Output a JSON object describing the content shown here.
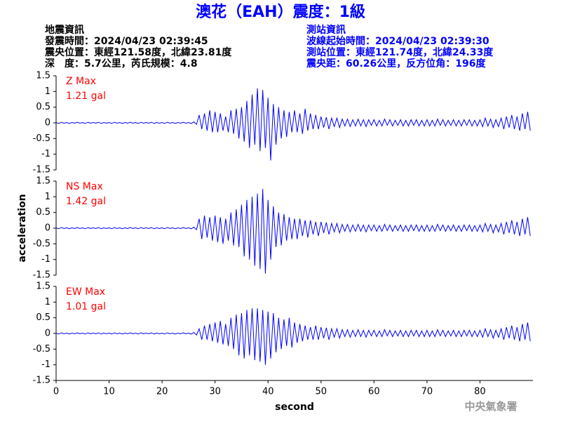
{
  "header": {
    "title": "澳花（EAH）震度：1級",
    "left": [
      "地震資訊",
      "發震時間：2024/04/23 02:39:45",
      "震央位置：東經121.58度，北緯23.81度",
      "深　度：5.7公里，芮氏規模：4.8"
    ],
    "right": [
      "測站資訊",
      "波線起始時間：2024/04/23 02:39:30",
      "測站位置：東經121.74度，北緯24.33度",
      "震央距：60.26公里，反方位角：196度"
    ]
  },
  "footer": "中央氣象署",
  "chart_data": [
    {
      "type": "line",
      "annotations": [
        "Z Max",
        "1.21 gal"
      ],
      "annotation_color": "#ff0000",
      "xlim": [
        0,
        90
      ],
      "ylim": [
        -1.5,
        1.5
      ],
      "yticks": [
        -1.5,
        -1,
        -0.5,
        0,
        0.5,
        1,
        1.5
      ],
      "x": [
        0,
        0.5,
        1,
        1.5,
        2,
        2.5,
        3,
        3.5,
        4,
        4.5,
        5,
        5.5,
        6,
        6.5,
        7,
        7.5,
        8,
        8.5,
        9,
        9.5,
        10,
        10.5,
        11,
        11.5,
        12,
        12.5,
        13,
        13.5,
        14,
        14.5,
        15,
        15.5,
        16,
        16.5,
        17,
        17.5,
        18,
        18.5,
        19,
        19.5,
        20,
        20.5,
        21,
        21.5,
        22,
        22.5,
        23,
        23.5,
        24,
        24.5,
        25,
        25.5,
        26,
        26.5,
        27,
        27.5,
        28,
        28.5,
        29,
        29.5,
        30,
        30.5,
        31,
        31.5,
        32,
        32.5,
        33,
        33.5,
        34,
        34.5,
        35,
        35.5,
        36,
        36.5,
        37,
        37.5,
        38,
        38.5,
        39,
        39.5,
        40,
        40.5,
        41,
        41.5,
        42,
        42.5,
        43,
        43.5,
        44,
        44.5,
        45,
        45.5,
        46,
        46.5,
        47,
        47.5,
        48,
        48.5,
        49,
        49.5,
        50,
        50.5,
        51,
        51.5,
        52,
        52.5,
        53,
        53.5,
        54,
        54.5,
        55,
        55.5,
        56,
        56.5,
        57,
        57.5,
        58,
        58.5,
        59,
        59.5,
        60,
        60.5,
        61,
        61.5,
        62,
        62.5,
        63,
        63.5,
        64,
        64.5,
        65,
        65.5,
        66,
        66.5,
        67,
        67.5,
        68,
        68.5,
        69,
        69.5,
        70,
        70.5,
        71,
        71.5,
        72,
        72.5,
        73,
        73.5,
        74,
        74.5,
        75,
        75.5,
        76,
        76.5,
        77,
        77.5,
        78,
        78.5,
        79,
        79.5,
        80,
        80.5,
        81,
        81.5,
        82,
        82.5,
        83,
        83.5,
        84,
        84.5,
        85,
        85.5,
        86,
        86.5,
        87,
        87.5,
        88,
        88.5,
        89,
        89.5
      ],
      "series": [
        {
          "color": "#0000ff",
          "values": [
            0.01,
            -0.02,
            0.02,
            -0.01,
            0.01,
            -0.02,
            0.01,
            -0.01,
            0.02,
            -0.01,
            0.01,
            -0.02,
            0.02,
            -0.01,
            0.01,
            -0.01,
            0.02,
            -0.02,
            0.01,
            -0.01,
            0.01,
            -0.02,
            0.02,
            -0.01,
            0.01,
            -0.02,
            0.01,
            -0.01,
            0.02,
            -0.01,
            0.01,
            -0.02,
            0.02,
            -0.01,
            0.01,
            -0.01,
            0.02,
            -0.02,
            0.01,
            -0.01,
            0.01,
            -0.02,
            0.02,
            -0.01,
            0.01,
            -0.02,
            0.01,
            -0.01,
            0.02,
            -0.01,
            0.01,
            -0.02,
            0.03,
            -0.05,
            0.25,
            -0.2,
            0.3,
            -0.25,
            0.4,
            -0.3,
            0.35,
            -0.3,
            0.3,
            -0.25,
            0.2,
            -0.3,
            0.4,
            -0.35,
            0.45,
            -0.5,
            0.5,
            -0.6,
            0.7,
            -0.8,
            0.9,
            -0.7,
            1.1,
            -0.9,
            1.05,
            -0.8,
            0.8,
            -1.2,
            0.6,
            -0.7,
            0.5,
            -0.5,
            0.4,
            -0.45,
            0.35,
            -0.3,
            0.4,
            -0.3,
            0.3,
            -0.35,
            0.45,
            -0.25,
            0.3,
            -0.2,
            0.25,
            -0.2,
            0.2,
            -0.15,
            0.18,
            -0.2,
            0.15,
            -0.12,
            0.15,
            -0.15,
            0.12,
            -0.1,
            0.12,
            -0.12,
            0.1,
            -0.1,
            0.12,
            -0.1,
            0.1,
            -0.12,
            0.1,
            -0.08,
            0.1,
            -0.1,
            0.08,
            -0.1,
            0.12,
            -0.08,
            0.1,
            -0.1,
            0.08,
            -0.08,
            0.1,
            -0.1,
            0.08,
            -0.1,
            0.1,
            -0.08,
            0.1,
            -0.1,
            0.08,
            -0.1,
            0.1,
            -0.1,
            0.08,
            -0.1,
            0.12,
            -0.08,
            0.1,
            -0.1,
            0.08,
            -0.08,
            0.1,
            -0.1,
            0.08,
            -0.1,
            0.1,
            -0.08,
            0.1,
            -0.1,
            0.08,
            -0.1,
            0.1,
            -0.12,
            0.15,
            -0.1,
            0.12,
            -0.15,
            0.1,
            -0.12,
            0.15,
            -0.2,
            0.2,
            -0.15,
            0.25,
            -0.2,
            0.2,
            -0.25,
            0.3,
            -0.2,
            0.35,
            -0.25
          ]
        }
      ]
    },
    {
      "type": "line",
      "annotations": [
        "NS Max",
        "1.42 gal"
      ],
      "annotation_color": "#ff0000",
      "ylabel": "acceleration",
      "xlim": [
        0,
        90
      ],
      "ylim": [
        -1.5,
        1.5
      ],
      "yticks": [
        -1.5,
        -1,
        -0.5,
        0,
        0.5,
        1,
        1.5
      ],
      "x": [
        0,
        0.5,
        1,
        1.5,
        2,
        2.5,
        3,
        3.5,
        4,
        4.5,
        5,
        5.5,
        6,
        6.5,
        7,
        7.5,
        8,
        8.5,
        9,
        9.5,
        10,
        10.5,
        11,
        11.5,
        12,
        12.5,
        13,
        13.5,
        14,
        14.5,
        15,
        15.5,
        16,
        16.5,
        17,
        17.5,
        18,
        18.5,
        19,
        19.5,
        20,
        20.5,
        21,
        21.5,
        22,
        22.5,
        23,
        23.5,
        24,
        24.5,
        25,
        25.5,
        26,
        26.5,
        27,
        27.5,
        28,
        28.5,
        29,
        29.5,
        30,
        30.5,
        31,
        31.5,
        32,
        32.5,
        33,
        33.5,
        34,
        34.5,
        35,
        35.5,
        36,
        36.5,
        37,
        37.5,
        38,
        38.5,
        39,
        39.5,
        40,
        40.5,
        41,
        41.5,
        42,
        42.5,
        43,
        43.5,
        44,
        44.5,
        45,
        45.5,
        46,
        46.5,
        47,
        47.5,
        48,
        48.5,
        49,
        49.5,
        50,
        50.5,
        51,
        51.5,
        52,
        52.5,
        53,
        53.5,
        54,
        54.5,
        55,
        55.5,
        56,
        56.5,
        57,
        57.5,
        58,
        58.5,
        59,
        59.5,
        60,
        60.5,
        61,
        61.5,
        62,
        62.5,
        63,
        63.5,
        64,
        64.5,
        65,
        65.5,
        66,
        66.5,
        67,
        67.5,
        68,
        68.5,
        69,
        69.5,
        70,
        70.5,
        71,
        71.5,
        72,
        72.5,
        73,
        73.5,
        74,
        74.5,
        75,
        75.5,
        76,
        76.5,
        77,
        77.5,
        78,
        78.5,
        79,
        79.5,
        80,
        80.5,
        81,
        81.5,
        82,
        82.5,
        83,
        83.5,
        84,
        84.5,
        85,
        85.5,
        86,
        86.5,
        87,
        87.5,
        88,
        88.5,
        89,
        89.5
      ],
      "series": [
        {
          "color": "#0000ff",
          "values": [
            0.01,
            -0.02,
            0.02,
            -0.01,
            0.01,
            -0.02,
            0.01,
            -0.01,
            0.02,
            -0.01,
            0.01,
            -0.02,
            0.02,
            -0.01,
            0.01,
            -0.01,
            0.02,
            -0.02,
            0.01,
            -0.01,
            0.01,
            -0.02,
            0.02,
            -0.01,
            0.01,
            -0.02,
            0.01,
            -0.01,
            0.02,
            -0.01,
            0.01,
            -0.02,
            0.02,
            -0.01,
            0.01,
            -0.01,
            0.02,
            -0.02,
            0.01,
            -0.01,
            0.01,
            -0.02,
            0.02,
            -0.01,
            0.01,
            -0.02,
            0.01,
            -0.01,
            0.02,
            -0.01,
            0.01,
            -0.02,
            0.03,
            -0.05,
            0.3,
            -0.35,
            0.4,
            -0.3,
            0.35,
            -0.4,
            0.4,
            -0.45,
            0.35,
            -0.5,
            0.3,
            -0.4,
            0.5,
            -0.55,
            0.6,
            -0.6,
            0.75,
            -0.9,
            0.9,
            -1.0,
            1.0,
            -1.2,
            1.1,
            -1.3,
            1.25,
            -1.45,
            0.9,
            -1.0,
            0.7,
            -0.6,
            0.5,
            -0.55,
            0.45,
            -0.4,
            0.35,
            -0.35,
            0.3,
            -0.35,
            0.3,
            -0.25,
            0.25,
            -0.3,
            0.25,
            -0.2,
            0.2,
            -0.25,
            0.2,
            -0.15,
            0.18,
            -0.2,
            0.15,
            -0.12,
            0.15,
            -0.15,
            0.12,
            -0.1,
            0.12,
            -0.12,
            0.1,
            -0.1,
            0.12,
            -0.1,
            0.1,
            -0.12,
            0.1,
            -0.08,
            0.1,
            -0.1,
            0.08,
            -0.1,
            0.12,
            -0.08,
            0.1,
            -0.1,
            0.08,
            -0.08,
            0.1,
            -0.1,
            0.08,
            -0.1,
            0.1,
            -0.08,
            0.1,
            -0.1,
            0.08,
            -0.1,
            0.1,
            -0.1,
            0.08,
            -0.1,
            0.12,
            -0.08,
            0.1,
            -0.1,
            0.08,
            -0.08,
            0.1,
            -0.1,
            0.08,
            -0.1,
            0.1,
            -0.08,
            0.1,
            -0.1,
            0.08,
            -0.1,
            0.1,
            -0.12,
            0.15,
            -0.1,
            0.12,
            -0.15,
            0.1,
            -0.12,
            0.15,
            -0.2,
            0.2,
            -0.15,
            0.25,
            -0.2,
            0.2,
            -0.25,
            0.3,
            -0.2,
            0.35,
            -0.25
          ]
        }
      ]
    },
    {
      "type": "line",
      "annotations": [
        "EW Max",
        "1.01 gal"
      ],
      "annotation_color": "#ff0000",
      "xlabel": "second",
      "xlim": [
        0,
        90
      ],
      "xticks": [
        0,
        10,
        20,
        30,
        40,
        50,
        60,
        70,
        80
      ],
      "ylim": [
        -1.5,
        1.5
      ],
      "yticks": [
        -1.5,
        -1,
        -0.5,
        0,
        0.5,
        1,
        1.5
      ],
      "x": [
        0,
        0.5,
        1,
        1.5,
        2,
        2.5,
        3,
        3.5,
        4,
        4.5,
        5,
        5.5,
        6,
        6.5,
        7,
        7.5,
        8,
        8.5,
        9,
        9.5,
        10,
        10.5,
        11,
        11.5,
        12,
        12.5,
        13,
        13.5,
        14,
        14.5,
        15,
        15.5,
        16,
        16.5,
        17,
        17.5,
        18,
        18.5,
        19,
        19.5,
        20,
        20.5,
        21,
        21.5,
        22,
        22.5,
        23,
        23.5,
        24,
        24.5,
        25,
        25.5,
        26,
        26.5,
        27,
        27.5,
        28,
        28.5,
        29,
        29.5,
        30,
        30.5,
        31,
        31.5,
        32,
        32.5,
        33,
        33.5,
        34,
        34.5,
        35,
        35.5,
        36,
        36.5,
        37,
        37.5,
        38,
        38.5,
        39,
        39.5,
        40,
        40.5,
        41,
        41.5,
        42,
        42.5,
        43,
        43.5,
        44,
        44.5,
        45,
        45.5,
        46,
        46.5,
        47,
        47.5,
        48,
        48.5,
        49,
        49.5,
        50,
        50.5,
        51,
        51.5,
        52,
        52.5,
        53,
        53.5,
        54,
        54.5,
        55,
        55.5,
        56,
        56.5,
        57,
        57.5,
        58,
        58.5,
        59,
        59.5,
        60,
        60.5,
        61,
        61.5,
        62,
        62.5,
        63,
        63.5,
        64,
        64.5,
        65,
        65.5,
        66,
        66.5,
        67,
        67.5,
        68,
        68.5,
        69,
        69.5,
        70,
        70.5,
        71,
        71.5,
        72,
        72.5,
        73,
        73.5,
        74,
        74.5,
        75,
        75.5,
        76,
        76.5,
        77,
        77.5,
        78,
        78.5,
        79,
        79.5,
        80,
        80.5,
        81,
        81.5,
        82,
        82.5,
        83,
        83.5,
        84,
        84.5,
        85,
        85.5,
        86,
        86.5,
        87,
        87.5,
        88,
        88.5,
        89,
        89.5
      ],
      "series": [
        {
          "color": "#0000ff",
          "values": [
            0.01,
            -0.02,
            0.02,
            -0.01,
            0.01,
            -0.02,
            0.01,
            -0.01,
            0.02,
            -0.01,
            0.01,
            -0.02,
            0.02,
            -0.01,
            0.01,
            -0.01,
            0.02,
            -0.02,
            0.01,
            -0.01,
            0.01,
            -0.02,
            0.02,
            -0.01,
            0.01,
            -0.02,
            0.01,
            -0.01,
            0.02,
            -0.01,
            0.01,
            -0.02,
            0.02,
            -0.01,
            0.01,
            -0.01,
            0.02,
            -0.02,
            0.01,
            -0.01,
            0.01,
            -0.02,
            0.02,
            -0.01,
            0.01,
            -0.02,
            0.01,
            -0.01,
            0.02,
            -0.01,
            0.01,
            -0.02,
            0.03,
            -0.05,
            0.15,
            -0.2,
            0.25,
            -0.2,
            0.3,
            -0.25,
            0.35,
            -0.3,
            0.4,
            -0.35,
            0.3,
            -0.4,
            0.5,
            -0.5,
            0.6,
            -0.7,
            0.65,
            -0.8,
            0.75,
            -0.7,
            0.8,
            -0.85,
            0.8,
            -0.9,
            0.75,
            -1.0,
            0.7,
            -0.8,
            0.65,
            -0.6,
            0.5,
            -0.5,
            0.45,
            -0.4,
            0.5,
            -0.45,
            0.35,
            -0.3,
            0.3,
            -0.25,
            0.25,
            -0.2,
            0.2,
            -0.2,
            0.25,
            -0.2,
            0.2,
            -0.15,
            0.18,
            -0.2,
            0.15,
            -0.12,
            0.15,
            -0.15,
            0.12,
            -0.1,
            0.12,
            -0.12,
            0.1,
            -0.1,
            0.12,
            -0.1,
            0.1,
            -0.12,
            0.1,
            -0.08,
            0.1,
            -0.1,
            0.08,
            -0.1,
            0.12,
            -0.08,
            0.1,
            -0.1,
            0.08,
            -0.08,
            0.1,
            -0.1,
            0.08,
            -0.1,
            0.1,
            -0.08,
            0.1,
            -0.1,
            0.08,
            -0.1,
            0.1,
            -0.1,
            0.08,
            -0.1,
            0.12,
            -0.08,
            0.1,
            -0.1,
            0.08,
            -0.08,
            0.1,
            -0.1,
            0.08,
            -0.1,
            0.1,
            -0.08,
            0.1,
            -0.1,
            0.08,
            -0.1,
            0.1,
            -0.12,
            0.15,
            -0.1,
            0.12,
            -0.15,
            0.1,
            -0.12,
            0.15,
            -0.2,
            0.2,
            -0.15,
            0.25,
            -0.2,
            0.2,
            -0.25,
            0.3,
            -0.2,
            0.35,
            -0.25
          ]
        }
      ]
    }
  ]
}
